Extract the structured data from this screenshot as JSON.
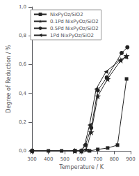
{
  "chart_data": {
    "type": "line",
    "xlabel": "Temperature / K",
    "ylabel": "Degree of Reduction / %",
    "series": [
      {
        "name": "NixPyOz/SiO2",
        "color": "#222222",
        "marker": "square",
        "x": [
          300,
          400,
          480,
          560,
          600,
          650,
          700,
          760,
          820,
          875
        ],
        "values": [
          0.0,
          0.0,
          0.0,
          0.0,
          0.0,
          0.0,
          0.01,
          0.02,
          0.04,
          0.5
        ]
      },
      {
        "name": "0.1Pd NixPyOz/SiO2",
        "color": "#222222",
        "marker": "star",
        "x": [
          300,
          560,
          600,
          630,
          660,
          700,
          760,
          840,
          875
        ],
        "values": [
          0.0,
          0.0,
          0.0,
          0.01,
          0.13,
          0.38,
          0.5,
          0.63,
          0.66
        ]
      },
      {
        "name": "0.5Pd NixPyOz/SiO2",
        "color": "#222222",
        "marker": "circle",
        "x": [
          300,
          560,
          600,
          625,
          660,
          700,
          755,
          845,
          880
        ],
        "values": [
          0.0,
          0.0,
          0.0,
          0.04,
          0.16,
          0.42,
          0.51,
          0.68,
          0.72
        ]
      },
      {
        "name": "1Pd NixPyOz/SiO2",
        "color": "#222222",
        "marker": "triangle_left",
        "x": [
          300,
          560,
          600,
          620,
          650,
          690,
          750,
          835,
          870
        ],
        "values": [
          0.0,
          0.0,
          0.0,
          0.04,
          0.18,
          0.43,
          0.55,
          0.63,
          0.65
        ]
      }
    ],
    "xlim": [
      300,
      900
    ],
    "xticks": [
      300,
      400,
      500,
      600,
      700,
      800,
      900
    ],
    "ylim": [
      0.0,
      1.0
    ],
    "yticks": [
      {
        "value": 0.0,
        "label": "0,0"
      },
      {
        "value": 0.2,
        "label": "0,2"
      },
      {
        "value": 0.4,
        "label": "0,4"
      },
      {
        "value": 0.6,
        "label": "0,6"
      },
      {
        "value": 0.8,
        "label": "0,8"
      },
      {
        "value": 1.0,
        "label": "1,0"
      }
    ],
    "grid": false,
    "legend": "upper left"
  }
}
